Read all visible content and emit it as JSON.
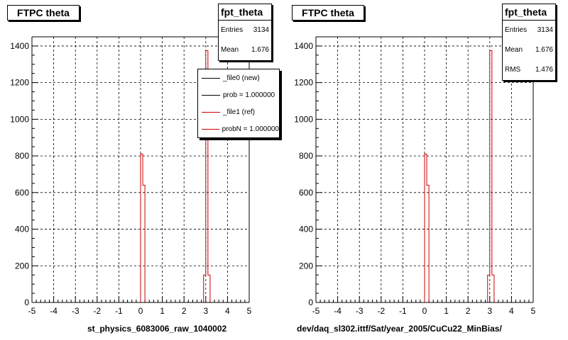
{
  "chart_data": [
    {
      "type": "histogram",
      "title": "FTPC theta",
      "xlabel": "st_physics_6083006_raw_1040002",
      "xlim": [
        -5,
        5
      ],
      "ylim": [
        0,
        1450
      ],
      "xticks": [
        -5,
        -4,
        -3,
        -2,
        -1,
        0,
        1,
        2,
        3,
        4,
        5
      ],
      "yticks": [
        0,
        200,
        400,
        600,
        800,
        1000,
        1200,
        1400
      ],
      "grid": true,
      "stats": {
        "name": "fpt_theta",
        "entries_label": "Entries",
        "entries": "3134",
        "mean_label": "Mean",
        "mean": "1.676"
      },
      "legend": {
        "placement": "top-right",
        "entries": [
          "_file0 (new)",
          "prob = 1.000000",
          "_file1 (ref)",
          "probN = 1.000000"
        ],
        "colors": [
          "#000000",
          "#000000",
          "#cc0000",
          "#cc0000"
        ]
      },
      "series": [
        {
          "color": "#cc0000",
          "bins": [
            {
              "x0": -5.0,
              "x1": 0.0,
              "y": 0
            },
            {
              "x0": 0.0,
              "x1": 0.1,
              "y": 810
            },
            {
              "x0": 0.1,
              "x1": 0.2,
              "y": 640
            },
            {
              "x0": 0.2,
              "x1": 2.9,
              "y": 0
            },
            {
              "x0": 2.9,
              "x1": 3.0,
              "y": 150
            },
            {
              "x0": 3.0,
              "x1": 3.1,
              "y": 1375
            },
            {
              "x0": 3.1,
              "x1": 3.2,
              "y": 150
            },
            {
              "x0": 3.2,
              "x1": 5.0,
              "y": 0
            }
          ]
        }
      ]
    },
    {
      "type": "histogram",
      "title": "FTPC theta",
      "xlabel": "dev/daq_sl302.ittf/Sat/year_2005/CuCu22_MinBias/",
      "xlim": [
        -5,
        5
      ],
      "ylim": [
        0,
        1450
      ],
      "xticks": [
        -5,
        -4,
        -3,
        -2,
        -1,
        0,
        1,
        2,
        3,
        4,
        5
      ],
      "yticks": [
        0,
        200,
        400,
        600,
        800,
        1000,
        1200,
        1400
      ],
      "grid": true,
      "stats": {
        "name": "fpt_theta",
        "entries_label": "Entries",
        "entries": "3134",
        "mean_label": "Mean",
        "mean": "1.676",
        "rms_label": "RMS",
        "rms": "1.476"
      },
      "series": [
        {
          "color": "#cc0000",
          "bins": [
            {
              "x0": -5.0,
              "x1": 0.0,
              "y": 0
            },
            {
              "x0": 0.0,
              "x1": 0.1,
              "y": 810
            },
            {
              "x0": 0.1,
              "x1": 0.2,
              "y": 640
            },
            {
              "x0": 0.2,
              "x1": 2.9,
              "y": 0
            },
            {
              "x0": 2.9,
              "x1": 3.0,
              "y": 150
            },
            {
              "x0": 3.0,
              "x1": 3.1,
              "y": 1375
            },
            {
              "x0": 3.1,
              "x1": 3.2,
              "y": 150
            },
            {
              "x0": 3.2,
              "x1": 5.0,
              "y": 0
            }
          ]
        }
      ]
    }
  ]
}
